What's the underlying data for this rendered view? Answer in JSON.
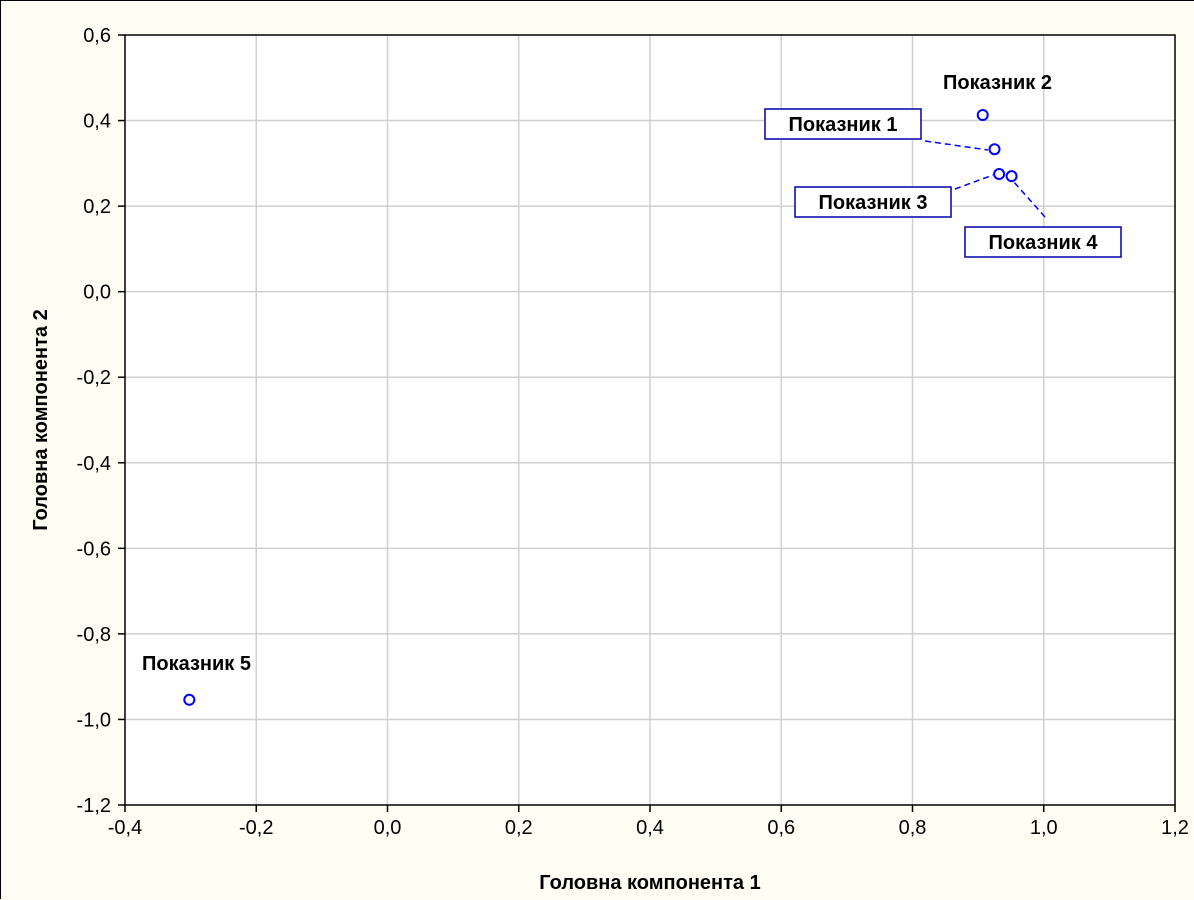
{
  "chart_data": {
    "type": "scatter",
    "title": "",
    "xlabel": "Головна компонента 1",
    "ylabel": "Головна компонента 2",
    "xlim": [
      -0.4,
      1.2
    ],
    "ylim": [
      -1.2,
      0.6
    ],
    "xticks": [
      "-0,4",
      "-0,2",
      "0,0",
      "0,2",
      "0,4",
      "0,6",
      "0,8",
      "1,0",
      "1,2"
    ],
    "yticks": [
      "0,6",
      "0,4",
      "0,2",
      "0,0",
      "-0,2",
      "-0,4",
      "-0,6",
      "-0,8",
      "-1,0",
      "-1,2"
    ],
    "grid": true,
    "points": [
      {
        "label": "Показник 1",
        "x": 0.925,
        "y": 0.333,
        "boxed": true
      },
      {
        "label": "Показник 2",
        "x": 0.907,
        "y": 0.413,
        "boxed": false
      },
      {
        "label": "Показник 3",
        "x": 0.932,
        "y": 0.275,
        "boxed": true
      },
      {
        "label": "Показник 4",
        "x": 0.951,
        "y": 0.27,
        "boxed": true
      },
      {
        "label": "Показник 5",
        "x": -0.302,
        "y": -0.954,
        "boxed": false
      }
    ],
    "colors": {
      "marker": "#0000ff",
      "grid": "#d0d0d0",
      "background": "#ffffff"
    }
  }
}
